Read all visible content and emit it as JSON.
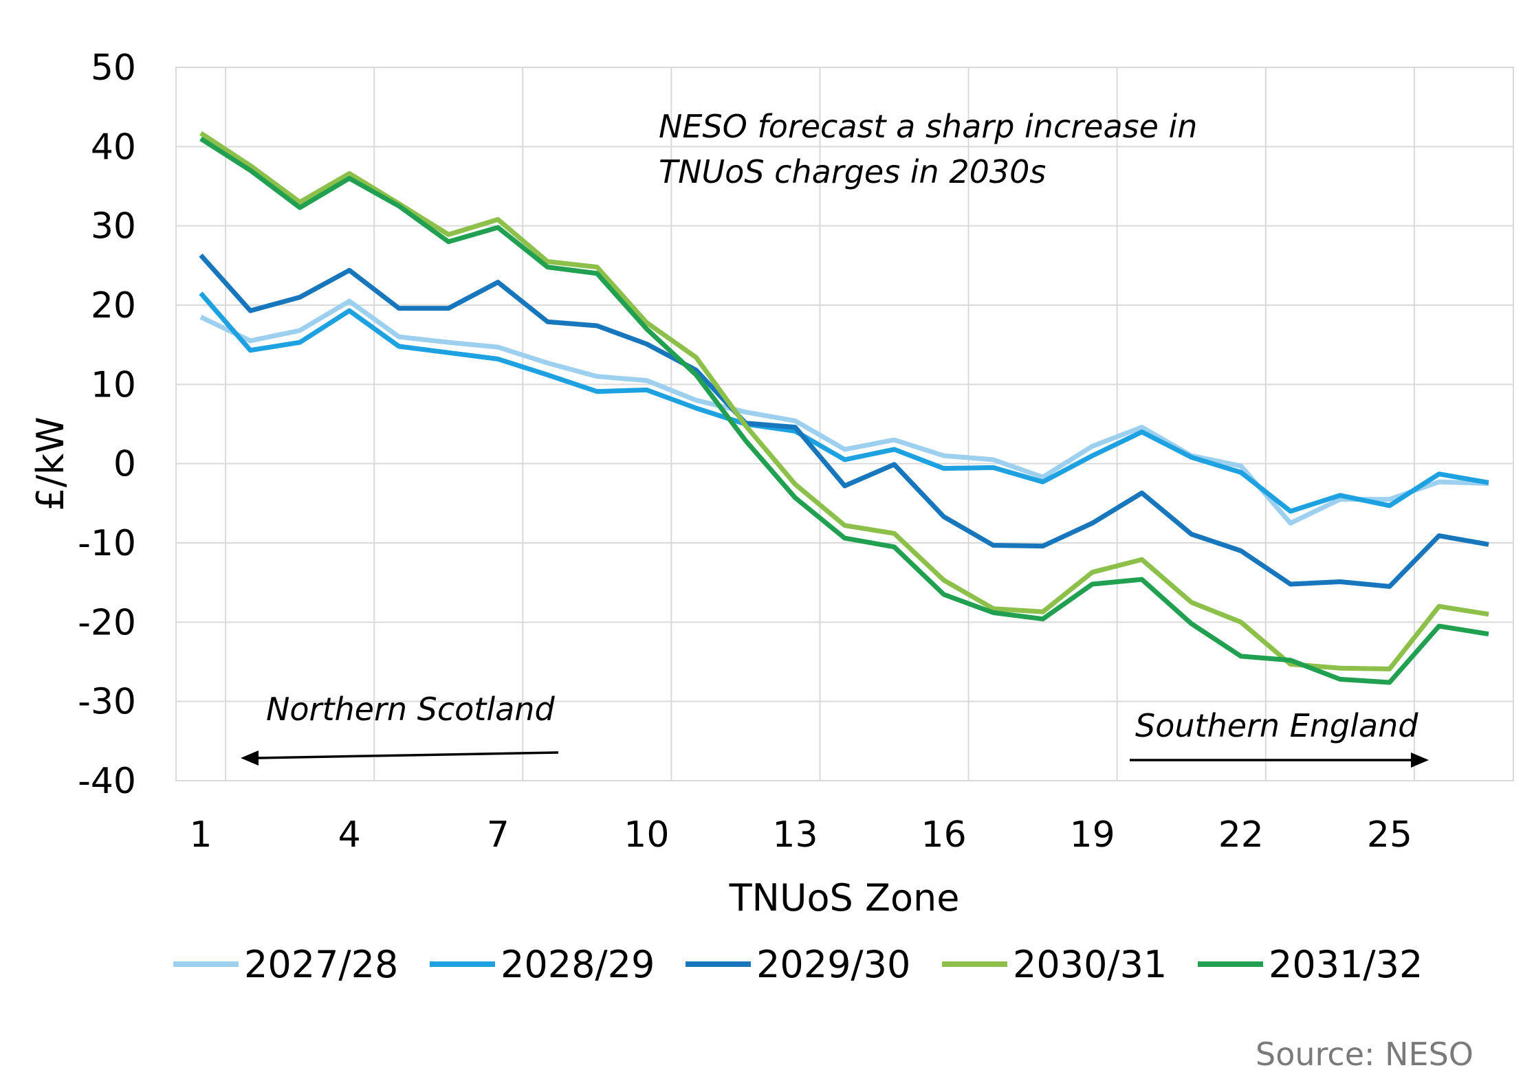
{
  "chart_data": {
    "type": "line",
    "xlabel": "TNUoS Zone",
    "ylabel": "£/kW",
    "x": [
      1,
      2,
      3,
      4,
      5,
      6,
      7,
      8,
      9,
      10,
      11,
      12,
      13,
      14,
      15,
      16,
      17,
      18,
      19,
      20,
      21,
      22,
      23,
      24,
      25,
      26,
      27
    ],
    "x_ticks": [
      1,
      4,
      7,
      10,
      13,
      16,
      19,
      22,
      25
    ],
    "xlim": [
      0.5,
      27.5
    ],
    "ylim": [
      -40,
      50
    ],
    "y_ticks": [
      50,
      40,
      30,
      20,
      10,
      0,
      -10,
      -20,
      -30,
      -40
    ],
    "grid": true,
    "legend_position": "bottom",
    "series": [
      {
        "name": "2027/28",
        "color": "#9dd0ee",
        "values": [
          18.5,
          15.5,
          16.8,
          20.5,
          16,
          15.3,
          14.7,
          12.7,
          11,
          10.5,
          8,
          6.5,
          5.4,
          1.8,
          3,
          1,
          0.5,
          -1.7,
          2.2,
          4.6,
          1,
          -0.3,
          -7.5,
          -4.5,
          -4.5,
          -2.3,
          -2.5
        ]
      },
      {
        "name": "2028/29",
        "color": "#1da1e0",
        "values": [
          21.5,
          14.3,
          15.3,
          19.3,
          14.8,
          14,
          13.2,
          11.2,
          9.1,
          9.3,
          7,
          5,
          4.1,
          0.5,
          1.8,
          -0.6,
          -0.5,
          -2.3,
          1,
          4,
          0.8,
          -1.1,
          -6,
          -4,
          -5.3,
          -1.3,
          -2.4
        ]
      },
      {
        "name": "2029/30",
        "color": "#1776bc",
        "values": [
          26.3,
          19.3,
          21,
          24.4,
          19.6,
          19.6,
          22.9,
          17.9,
          17.4,
          15.1,
          11.8,
          5.1,
          4.6,
          -2.8,
          -0.1,
          -6.7,
          -10.3,
          -10.4,
          -7.5,
          -3.7,
          -8.9,
          -11,
          -15.2,
          -14.9,
          -15.5,
          -9.1,
          -10.2
        ]
      },
      {
        "name": "2030/31",
        "color": "#8dc04b",
        "values": [
          41.7,
          37.6,
          33,
          36.6,
          32.8,
          28.9,
          30.8,
          25.5,
          24.8,
          17.8,
          13.4,
          4.8,
          -2.6,
          -7.8,
          -8.8,
          -14.7,
          -18.3,
          -18.7,
          -13.7,
          -12.1,
          -17.5,
          -20,
          -25.3,
          -25.8,
          -25.9,
          -18,
          -19
        ]
      },
      {
        "name": "2031/32",
        "color": "#20a050",
        "values": [
          41,
          37,
          32.3,
          36,
          32.5,
          28,
          29.8,
          24.8,
          24,
          17,
          11.2,
          2.9,
          -4.3,
          -9.4,
          -10.5,
          -16.5,
          -18.8,
          -19.6,
          -15.2,
          -14.6,
          -20.2,
          -24.3,
          -24.8,
          -27.2,
          -27.6,
          -20.5,
          -21.5
        ]
      }
    ],
    "annotations": {
      "headline_line1": "NESO forecast a sharp increase in",
      "headline_line2": "TNUoS charges in 2030s",
      "left_arrow_label": "Northern Scotland",
      "right_arrow_label": "Southern England"
    },
    "source": "Source: NESO"
  }
}
